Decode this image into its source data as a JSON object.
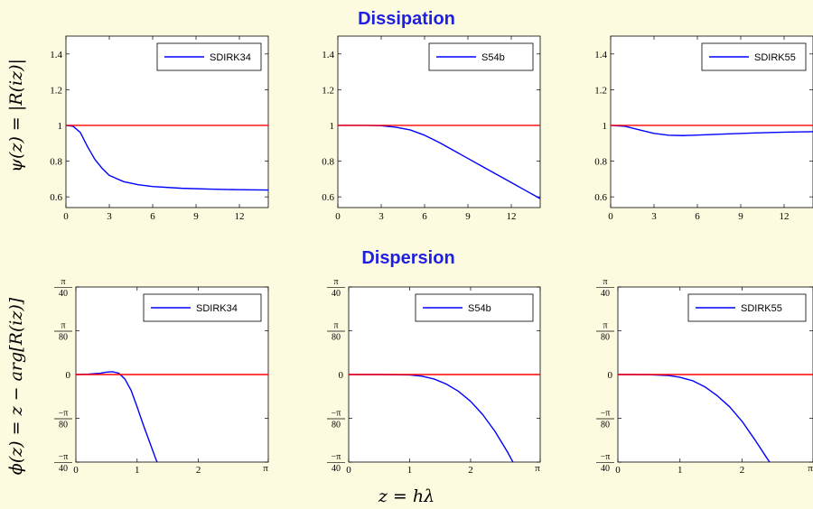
{
  "headings": {
    "top": "Dissipation",
    "bottom": "Dispersion"
  },
  "labels": {
    "dissipation_ylabel": "ψ(z) = |R(iz)|",
    "dispersion_ylabel": "ϕ(z) = z − arg[R(iz)]",
    "xlabel": "z = hλ"
  },
  "colors": {
    "method": "#0000ff",
    "reference": "#ff0000",
    "heading": "#1f1fe0",
    "background": "#fdfbdf"
  },
  "chart_data": [
    {
      "type": "line",
      "group": "dissipation",
      "xlim": [
        0,
        14
      ],
      "ylim": [
        0.54,
        1.5
      ],
      "xticks": [
        0,
        3,
        6,
        9,
        12
      ],
      "yticks": [
        0.6,
        0.8,
        1,
        1.2,
        1.4
      ],
      "series": [
        {
          "name": "SDIRK34",
          "x": [
            0,
            0.5,
            1,
            1.5,
            2,
            2.5,
            3,
            4,
            5,
            6,
            8,
            10,
            12,
            14
          ],
          "y": [
            1.0,
            0.995,
            0.96,
            0.88,
            0.81,
            0.76,
            0.72,
            0.685,
            0.668,
            0.658,
            0.648,
            0.643,
            0.64,
            0.638
          ]
        },
        {
          "name": "",
          "x": [
            0,
            14
          ],
          "y": [
            1,
            1
          ]
        }
      ],
      "legend": "top-right"
    },
    {
      "type": "line",
      "group": "dissipation",
      "xlim": [
        0,
        14
      ],
      "ylim": [
        0.54,
        1.5
      ],
      "xticks": [
        0,
        3,
        6,
        9,
        12
      ],
      "yticks": [
        0.6,
        0.8,
        1,
        1.2,
        1.4
      ],
      "series": [
        {
          "name": "S54b",
          "x": [
            0,
            1,
            2,
            3,
            4,
            5,
            6,
            7,
            8,
            9,
            10,
            11,
            12,
            13,
            14
          ],
          "y": [
            1.0,
            1.0,
            1.0,
            0.998,
            0.99,
            0.975,
            0.945,
            0.905,
            0.86,
            0.815,
            0.77,
            0.725,
            0.68,
            0.635,
            0.59
          ]
        },
        {
          "name": "",
          "x": [
            0,
            14
          ],
          "y": [
            1,
            1
          ]
        }
      ],
      "legend": "top-right"
    },
    {
      "type": "line",
      "group": "dissipation",
      "xlim": [
        0,
        14
      ],
      "ylim": [
        0.54,
        1.5
      ],
      "xticks": [
        0,
        3,
        6,
        9,
        12
      ],
      "yticks": [
        0.6,
        0.8,
        1,
        1.2,
        1.4
      ],
      "series": [
        {
          "name": "SDIRK55",
          "x": [
            0,
            1,
            2,
            3,
            4,
            5,
            6,
            8,
            10,
            12,
            14
          ],
          "y": [
            1.0,
            0.995,
            0.975,
            0.955,
            0.945,
            0.943,
            0.946,
            0.952,
            0.958,
            0.962,
            0.965
          ]
        },
        {
          "name": "",
          "x": [
            0,
            14
          ],
          "y": [
            1,
            1
          ]
        }
      ],
      "legend": "top-right"
    },
    {
      "type": "line",
      "group": "dispersion",
      "xlim": [
        0,
        3.14159
      ],
      "ylim": [
        -0.0785,
        0.0785
      ],
      "xticks": [
        "0",
        "1",
        "2",
        "π"
      ],
      "yticks": [
        "π/40",
        "π/80",
        "0",
        "−π/80",
        "−π/40"
      ],
      "series": [
        {
          "name": "SDIRK34",
          "x": [
            0,
            0.2,
            0.4,
            0.5,
            0.6,
            0.7,
            0.8,
            0.9,
            1.0,
            1.1,
            1.2,
            1.3,
            1.33
          ],
          "y": [
            0,
            0.0003,
            0.0012,
            0.0022,
            0.0025,
            0.0012,
            -0.004,
            -0.014,
            -0.029,
            -0.045,
            -0.06,
            -0.075,
            -0.079
          ]
        },
        {
          "name": "",
          "x": [
            0,
            3.14159
          ],
          "y": [
            0,
            0
          ]
        }
      ],
      "legend": "top-right"
    },
    {
      "type": "line",
      "group": "dispersion",
      "xlim": [
        0,
        3.14159
      ],
      "ylim": [
        -0.0785,
        0.0785
      ],
      "xticks": [
        "0",
        "1",
        "2",
        "π"
      ],
      "yticks": [
        "π/40",
        "π/80",
        "0",
        "−π/80",
        "−π/40"
      ],
      "series": [
        {
          "name": "S54b",
          "x": [
            0,
            0.5,
            1.0,
            1.2,
            1.4,
            1.6,
            1.8,
            2.0,
            2.2,
            2.4,
            2.6,
            2.7
          ],
          "y": [
            0,
            0,
            -0.0003,
            -0.0015,
            -0.004,
            -0.0085,
            -0.015,
            -0.024,
            -0.036,
            -0.051,
            -0.069,
            -0.079
          ]
        },
        {
          "name": "",
          "x": [
            0,
            3.14159
          ],
          "y": [
            0,
            0
          ]
        }
      ],
      "legend": "top-right"
    },
    {
      "type": "line",
      "group": "dispersion",
      "xlim": [
        0,
        3.14159
      ],
      "ylim": [
        -0.0785,
        0.0785
      ],
      "xticks": [
        "0",
        "1",
        "2",
        "π"
      ],
      "yticks": [
        "π/40",
        "π/80",
        "0",
        "−π/80",
        "−π/40"
      ],
      "series": [
        {
          "name": "SDIRK55",
          "x": [
            0,
            0.5,
            0.8,
            1.0,
            1.2,
            1.4,
            1.6,
            1.8,
            2.0,
            2.2,
            2.4,
            2.45
          ],
          "y": [
            0,
            -0.0001,
            -0.0008,
            -0.0025,
            -0.0055,
            -0.011,
            -0.019,
            -0.029,
            -0.042,
            -0.058,
            -0.075,
            -0.079
          ]
        },
        {
          "name": "",
          "x": [
            0,
            3.14159
          ],
          "y": [
            0,
            0
          ]
        }
      ],
      "legend": "top-right"
    }
  ]
}
